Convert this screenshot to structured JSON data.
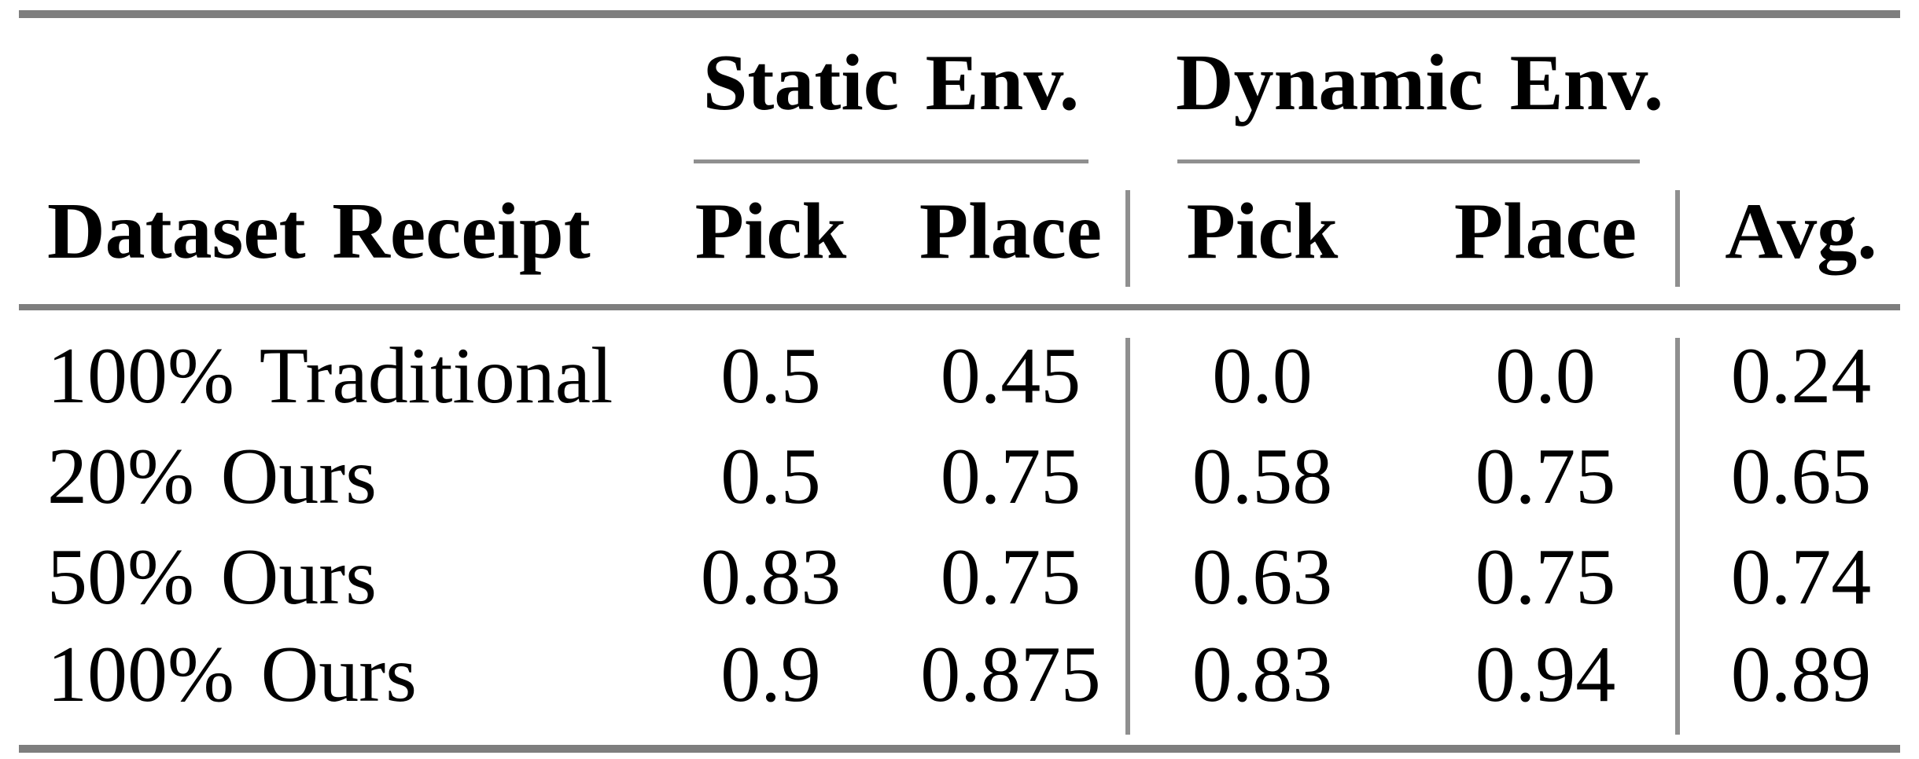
{
  "chart_data": {
    "type": "table",
    "group_headers": [
      "Static Env.",
      "Dynamic Env."
    ],
    "columns": [
      "Dataset Receipt",
      "Pick",
      "Place",
      "Pick",
      "Place",
      "Avg."
    ],
    "rows": [
      {
        "label": "100% Traditional",
        "values": [
          "0.5",
          "0.45",
          "0.0",
          "0.0",
          "0.24"
        ]
      },
      {
        "label": "20% Ours",
        "values": [
          "0.5",
          "0.75",
          "0.58",
          "0.75",
          "0.65"
        ]
      },
      {
        "label": "50% Ours",
        "values": [
          "0.83",
          "0.75",
          "0.63",
          "0.75",
          "0.74"
        ]
      },
      {
        "label": "100% Ours",
        "values": [
          "0.9",
          "0.875",
          "0.83",
          "0.94",
          "0.89"
        ]
      }
    ],
    "layout": {
      "rule_color_heavy": "#7e7e7e",
      "rule_color_light": "#8f8f8f",
      "text_color": "#000000",
      "background": "#ffffff"
    }
  }
}
